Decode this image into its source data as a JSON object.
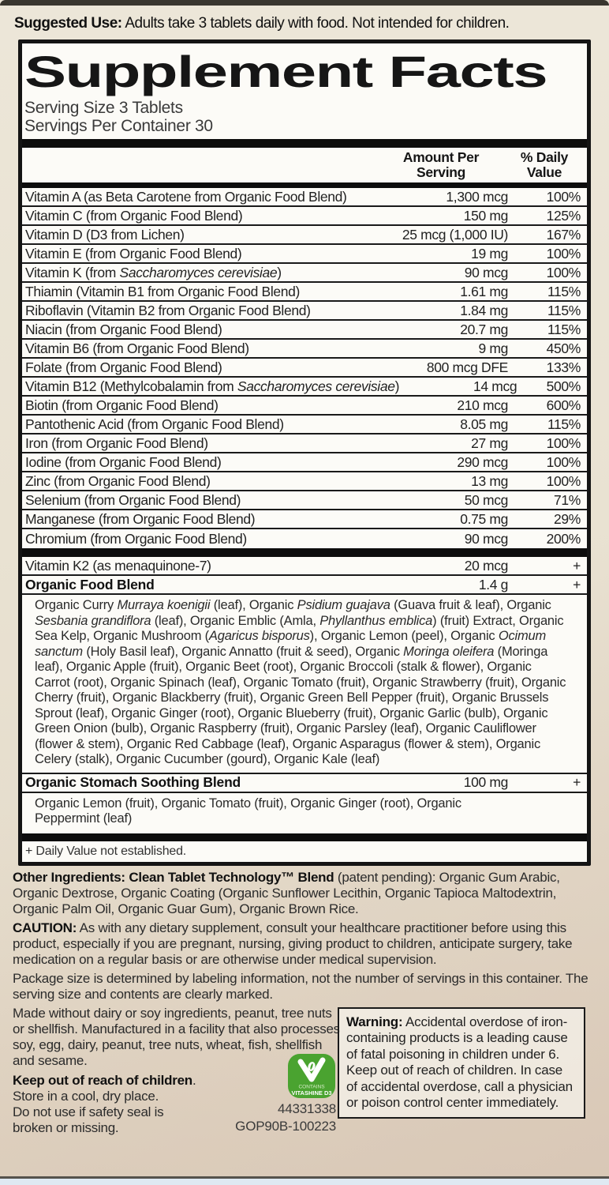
{
  "suggested_use": "**Suggested Use:** Adults take 3 tablets daily with food. Not intended for children.",
  "panel": {
    "title": "Supplement Facts",
    "serving_size": "Serving Size 3 Tablets",
    "servings_per_container": "Servings Per Container 30",
    "columns": {
      "amount": [
        "Amount Per",
        "Serving"
      ],
      "daily_value": [
        "% Daily",
        "Value"
      ]
    },
    "rows": [
      {
        "label": "Vitamin A (as Beta Carotene from Organic Food Blend)",
        "amount": "1,300 mcg",
        "dv": "100%"
      },
      {
        "label": "Vitamin C (from Organic Food Blend)",
        "amount": "150 mg",
        "dv": "125%"
      },
      {
        "label": "Vitamin D (D3 from Lichen)",
        "amount": "25 mcg (1,000 IU)",
        "dv": "167%"
      },
      {
        "label": "Vitamin E (from Organic Food Blend)",
        "amount": "19 mg",
        "dv": "100%"
      },
      {
        "label": "Vitamin K (from *Saccharomyces cerevisiae*)",
        "amount": "90 mcg",
        "dv": "100%"
      },
      {
        "label": "Thiamin (Vitamin B1 from Organic Food Blend)",
        "amount": "1.61 mg",
        "dv": "115%"
      },
      {
        "label": "Riboflavin (Vitamin B2 from Organic Food Blend)",
        "amount": "1.84 mg",
        "dv": "115%"
      },
      {
        "label": "Niacin (from Organic Food Blend)",
        "amount": "20.7 mg",
        "dv": "115%"
      },
      {
        "label": "Vitamin B6 (from Organic Food Blend)",
        "amount": "9 mg",
        "dv": "450%"
      },
      {
        "label": "Folate (from Organic Food Blend)",
        "amount": "800 mcg DFE",
        "dv": "133%"
      },
      {
        "label": "Vitamin B12 (Methylcobalamin from *Saccharomyces cerevisiae*)",
        "amount": "14 mcg",
        "dv": "500%"
      },
      {
        "label": "Biotin (from Organic Food Blend)",
        "amount": "210 mcg",
        "dv": "600%"
      },
      {
        "label": "Pantothenic Acid (from Organic Food Blend)",
        "amount": "8.05 mg",
        "dv": "115%"
      },
      {
        "label": "Iron (from Organic Food Blend)",
        "amount": "27 mg",
        "dv": "100%"
      },
      {
        "label": "Iodine (from Organic Food Blend)",
        "amount": "290 mcg",
        "dv": "100%"
      },
      {
        "label": "Zinc (from Organic Food Blend)",
        "amount": "13 mg",
        "dv": "100%"
      },
      {
        "label": "Selenium (from Organic Food Blend)",
        "amount": "50 mcg",
        "dv": "71%"
      },
      {
        "label": "Manganese (from Organic Food Blend)",
        "amount": "0.75 mg",
        "dv": "29%"
      },
      {
        "label": "Chromium (from Organic Food Blend)",
        "amount": "90 mcg",
        "dv": "200%"
      }
    ],
    "extra_rows": {
      "vitamin_k2": {
        "label": "Vitamin K2 (as menaquinone-7)",
        "amount": "20 mcg",
        "dv": "+"
      },
      "organic_food_blend": {
        "label": "Organic Food Blend",
        "amount": "1.4 g",
        "dv": "+",
        "ingredients": "Organic Curry *Murraya koenigii* (leaf), Organic *Psidium guajava* (Guava fruit & leaf), Organic *Sesbania grandiflora* (leaf), Organic Emblic (Amla, *Phyllanthus emblica*) (fruit) Extract, Organic Sea Kelp, Organic Mushroom (*Agaricus bisporus*), Organic Lemon (peel), Organic *Ocimum sanctum* (Holy Basil leaf), Organic Annatto (fruit & seed), Organic *Moringa oleifera* (Moringa leaf), Organic Apple (fruit), Organic Beet (root), Organic Broccoli (stalk & flower), Organic Carrot (root), Organic Spinach (leaf), Organic Tomato (fruit), Organic Strawberry (fruit), Organic Cherry (fruit), Organic Blackberry (fruit), Organic Green Bell Pepper (fruit), Organic Brussels Sprout (leaf), Organic Ginger (root), Organic Blueberry (fruit), Organic Garlic (bulb), Organic Green Onion (bulb), Organic Raspberry (fruit), Organic Parsley (leaf), Organic Cauliflower (flower & stem), Organic Red Cabbage (leaf), Organic Asparagus (flower & stem), Organic Celery (stalk), Organic Cucumber (gourd), Organic Kale (leaf)"
      },
      "stomach_blend": {
        "label": "Organic Stomach Soothing Blend",
        "amount": "100 mg",
        "dv": "+",
        "ingredients": "Organic Lemon (fruit), Organic Tomato (fruit), Organic Ginger (root), Organic Peppermint (leaf)"
      }
    },
    "footnote": "+ Daily Value not established."
  },
  "footer": {
    "other_ingredients": "**Other Ingredients: Clean Tablet Technology™ Blend** (patent pending): Organic Gum Arabic, Organic Dextrose, Organic Coating (Organic Sunflower Lecithin, Organic Tapioca Maltodextrin, Organic Palm Oil, Organic Guar Gum), Organic Brown Rice.",
    "caution": "**CAUTION:** As with any dietary supplement, consult your healthcare practitioner before using this product, especially if you are pregnant, nursing, giving product to children, anticipate surgery, take medication on a regular basis or are otherwise under medical supervision.",
    "package_size": "Package size is determined by labeling information, not the number of servings in this container. The serving size and contents are clearly marked.",
    "allergen": "Made without dairy or soy ingredients, peanut, tree nuts or shellfish. Manufactured in a facility that also processes soy, egg, dairy, peanut, tree nuts, wheat, fish, shellfish and sesame.",
    "keep_out": "**Keep out of reach of children**.",
    "storage": "Store in a cool, dry place.",
    "safety_seal": "Do not use if safety seal is broken or missing.",
    "codes": [
      "44331338",
      "GOP90B-100223"
    ],
    "badge": {
      "line1": "CONTAINS",
      "line2": "VITASHINE D3",
      "color": "#4aa330"
    },
    "warning": "**Warning:** Accidental overdose of iron-containing products is a leading cause of fatal poisoning in children under 6. Keep out of reach of children. In case of accidental overdose, call a physician or poison control center immediately."
  },
  "colors": {
    "paper": "#e9e2d2",
    "panel_bg": "#fcfbf7",
    "ink": "#161616",
    "badge_green": "#4aa330",
    "bottom_edge": "#dfe9f2"
  }
}
